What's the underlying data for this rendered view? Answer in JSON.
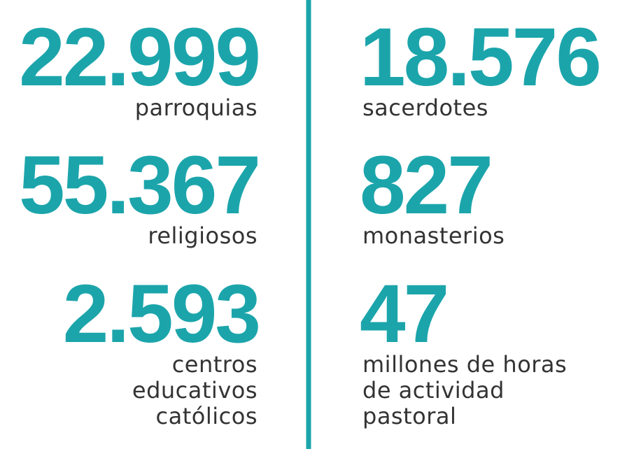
{
  "left": [
    {
      "number": "22.999",
      "label": [
        "parroquias"
      ]
    },
    {
      "number": "55.367",
      "label": [
        "religiosos"
      ]
    },
    {
      "number": "2.593",
      "label": [
        "centros",
        "educativos",
        "católicos"
      ]
    }
  ],
  "right": [
    {
      "number": "18.576",
      "label": [
        "sacerdotes"
      ]
    },
    {
      "number": "827",
      "label": [
        "monasterios"
      ]
    },
    {
      "number": "47",
      "label": [
        "millones de horas",
        "de actividad",
        "pastoral"
      ]
    }
  ]
}
